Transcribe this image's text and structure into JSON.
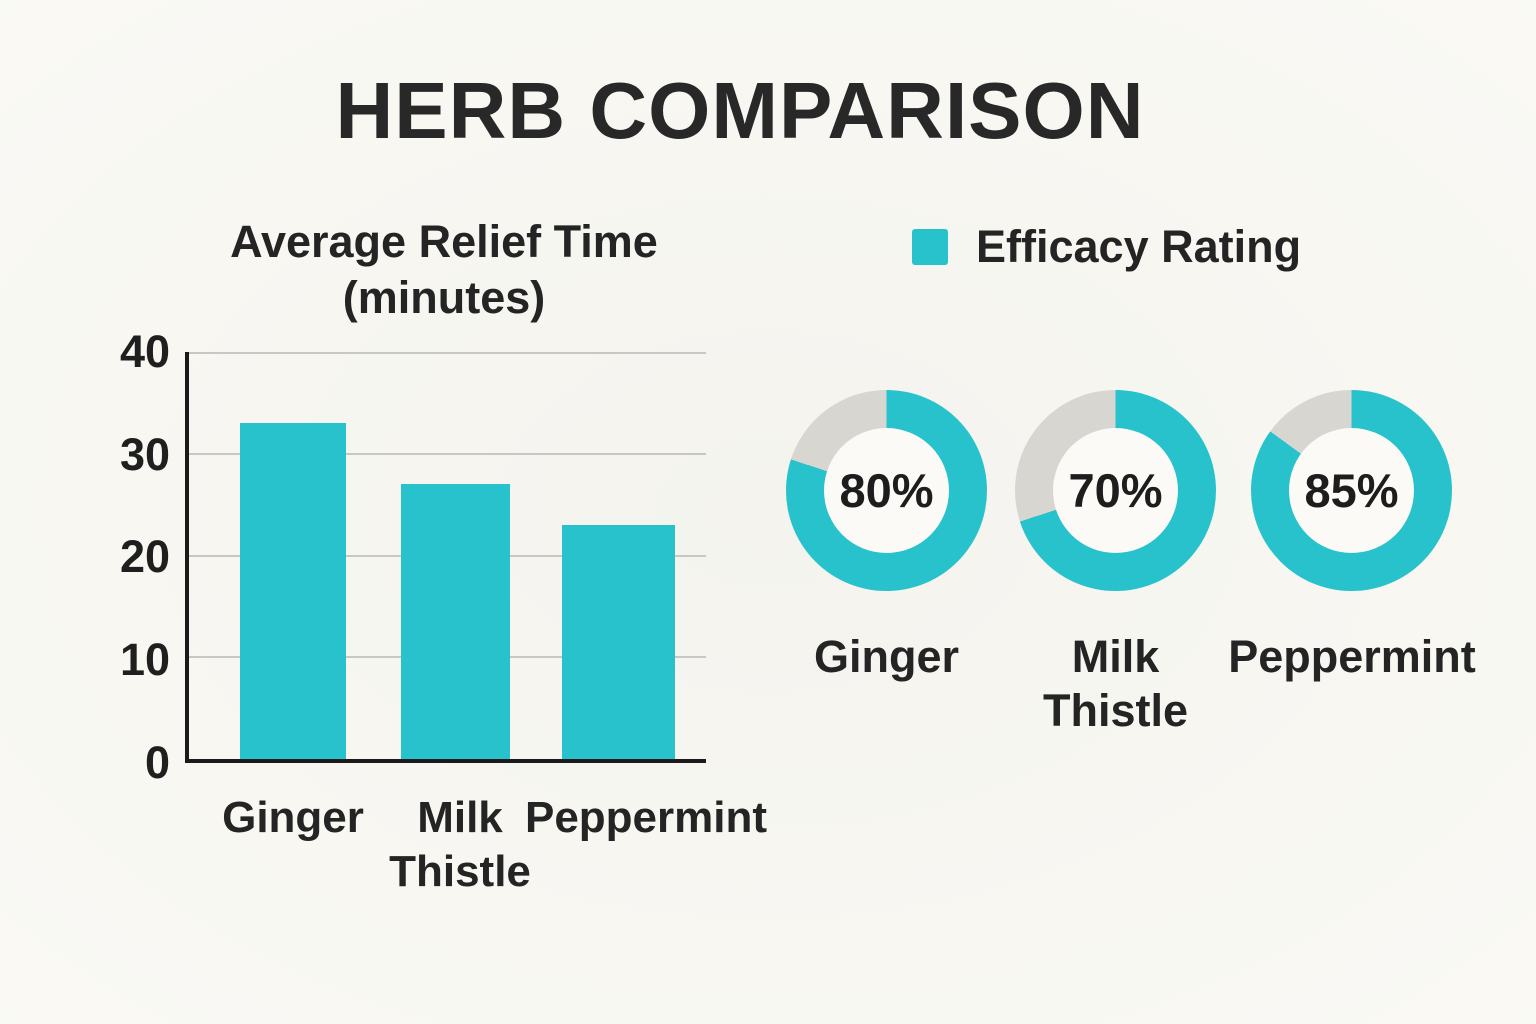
{
  "header": {
    "title": "HERB COMPARISON"
  },
  "colors": {
    "accent": "#28C2CC",
    "donut_track": "#D7D6D1",
    "background": "#F7F6F1",
    "donut_hole": "#FBFAF6",
    "grid": "#C8C7C2",
    "axis": "#1A1A1A",
    "text": "#252525"
  },
  "chart_data": [
    {
      "type": "bar",
      "title": "Average Relief Time (minutes)",
      "title_lines": [
        "Average Relief Time",
        "(minutes)"
      ],
      "categories": [
        "Ginger",
        "Milk Thistle",
        "Peppermint"
      ],
      "values": [
        33,
        27,
        23
      ],
      "xlabel": "",
      "ylabel": "",
      "ylim": [
        0,
        40
      ],
      "ytick_labels": [
        "40",
        "30",
        "20",
        "10",
        "0"
      ],
      "x_tick_lines": [
        [
          "Ginger"
        ],
        [
          "Milk",
          "Thistle"
        ],
        [
          "Peppermint"
        ]
      ],
      "grid": true,
      "legend_position": "none",
      "bar_color": "#28C2CC"
    },
    {
      "type": "pie",
      "variant": "donut",
      "legend_label": "Efficacy Rating",
      "legend_position": "top",
      "categories": [
        "Ginger",
        "Milk Thistle",
        "Peppermint"
      ],
      "category_lines": [
        [
          "Ginger"
        ],
        [
          "Milk",
          "Thistle"
        ],
        [
          "Peppermint"
        ]
      ],
      "values": [
        80,
        70,
        85
      ],
      "value_labels": [
        "80%",
        "70%",
        "85%"
      ],
      "ring_color": "#28C2CC",
      "track_color": "#D7D6D1"
    }
  ]
}
